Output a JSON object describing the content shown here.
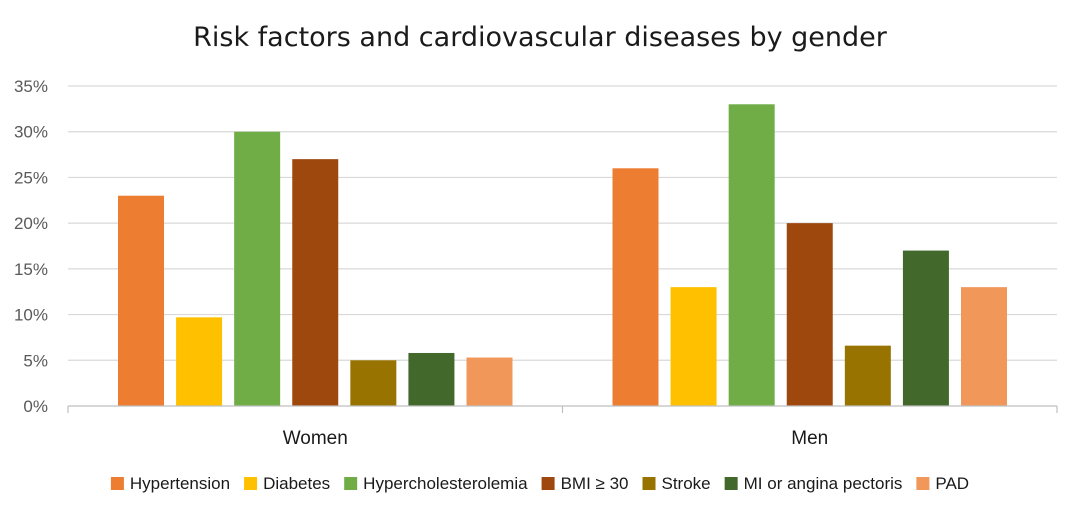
{
  "chart_data": {
    "type": "bar",
    "title": "Risk factors and cardiovascular diseases by gender",
    "xlabel": "",
    "ylabel": "",
    "categories": [
      "Women",
      "Men"
    ],
    "ylim": [
      0,
      35
    ],
    "yticks": [
      0,
      5,
      10,
      15,
      20,
      25,
      30,
      35
    ],
    "ytick_labels": [
      "0%",
      "5%",
      "10%",
      "15%",
      "20%",
      "25%",
      "30%",
      "35%"
    ],
    "grid": true,
    "legend_position": "bottom",
    "series": [
      {
        "name": "Hypertension",
        "color": "#ED7D31",
        "values": [
          23,
          26
        ]
      },
      {
        "name": "Diabetes",
        "color": "#FFC000",
        "values": [
          9.7,
          13
        ]
      },
      {
        "name": "Hypercholesterolemia",
        "color": "#70AD47",
        "values": [
          30,
          33
        ]
      },
      {
        "name": "BMI ≥ 30",
        "color": "#9E480E",
        "values": [
          27,
          20
        ]
      },
      {
        "name": "Stroke",
        "color": "#997300",
        "values": [
          5,
          6.6
        ]
      },
      {
        "name": "MI or angina pectoris",
        "color": "#43682B",
        "values": [
          5.8,
          17
        ]
      },
      {
        "name": "PAD",
        "color": "#F1975A",
        "values": [
          5.3,
          13
        ]
      }
    ]
  }
}
